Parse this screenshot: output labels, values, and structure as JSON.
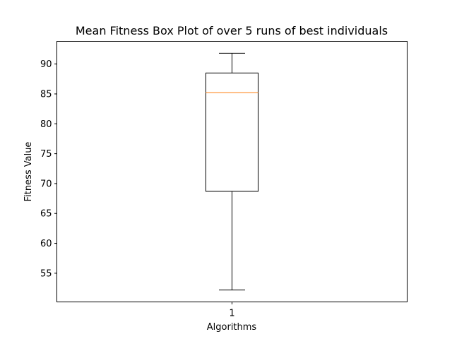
{
  "chart_data": {
    "type": "box",
    "title": "Mean Fitness Box Plot of over 5 runs of best individuals",
    "xlabel": "Algorithms",
    "ylabel": "Fitness Value",
    "categories": [
      "1"
    ],
    "boxes": [
      {
        "category": "1",
        "whisker_low": 52.2,
        "q1": 68.7,
        "median": 85.2,
        "q3": 88.5,
        "whisker_high": 91.8
      }
    ],
    "yticks": [
      55,
      60,
      65,
      70,
      75,
      80,
      85,
      90
    ],
    "ylim": [
      50.2,
      93.8
    ],
    "grid": false,
    "colors": {
      "box": "#000000",
      "median": "#ff7f0e",
      "axes": "#000000"
    }
  }
}
